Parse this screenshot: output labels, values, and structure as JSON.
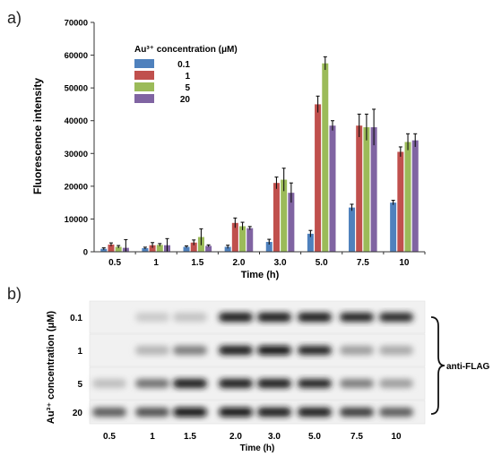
{
  "panel_a": {
    "label": "a)",
    "legend_title": "Au³⁺ concentration (μM)"
  },
  "panel_b": {
    "label": "b)",
    "ylabel": "Au³⁺ concentration (μM)",
    "xlabel": "Time (h)",
    "annotation": "anti-FLAG",
    "row_labels": [
      "0.1",
      "1",
      "5",
      "20"
    ],
    "col_labels": [
      "0.5",
      "1",
      "1.5",
      "2.0",
      "3.0",
      "5.0",
      "7.5",
      "10"
    ],
    "band_intensity": [
      [
        0.0,
        0.15,
        0.18,
        0.95,
        0.95,
        0.95,
        0.9,
        0.88
      ],
      [
        0.0,
        0.25,
        0.5,
        0.95,
        1.0,
        0.9,
        0.35,
        0.3
      ],
      [
        0.2,
        0.55,
        0.95,
        0.95,
        0.95,
        0.9,
        0.5,
        0.35
      ],
      [
        0.65,
        0.7,
        1.0,
        1.0,
        0.95,
        0.95,
        0.8,
        0.65
      ]
    ]
  },
  "chart_data": {
    "type": "bar",
    "title": "",
    "xlabel": "Time (h)",
    "ylabel": "Fluorescence intensity",
    "ylim": [
      0,
      70000
    ],
    "yticks": [
      0,
      10000,
      20000,
      30000,
      40000,
      50000,
      60000,
      70000
    ],
    "categories": [
      "0.5",
      "1",
      "1.5",
      "2.0",
      "3.0",
      "5.0",
      "7.5",
      "10"
    ],
    "legend_position": "top-left",
    "grid": false,
    "series": [
      {
        "name": "0.1",
        "color": "#4f81bd",
        "values": [
          900,
          1100,
          1500,
          1500,
          3000,
          5500,
          13500,
          15000
        ],
        "errors": [
          300,
          300,
          300,
          500,
          800,
          1000,
          1000,
          700
        ]
      },
      {
        "name": "1",
        "color": "#c0504d",
        "values": [
          2200,
          2000,
          2800,
          8800,
          21000,
          45000,
          38500,
          30500
        ],
        "errors": [
          500,
          800,
          800,
          1500,
          1800,
          2500,
          3500,
          1500
        ]
      },
      {
        "name": "5",
        "color": "#9bbb59",
        "values": [
          1500,
          2100,
          4500,
          7800,
          22000,
          57500,
          38000,
          33500
        ],
        "errors": [
          400,
          400,
          2500,
          1200,
          3500,
          2000,
          4000,
          2500
        ]
      },
      {
        "name": "20",
        "color": "#8064a2",
        "values": [
          1200,
          2000,
          1800,
          7200,
          18000,
          38500,
          38000,
          34000
        ],
        "errors": [
          2500,
          2000,
          300,
          500,
          3000,
          1500,
          5500,
          2000
        ]
      }
    ]
  }
}
